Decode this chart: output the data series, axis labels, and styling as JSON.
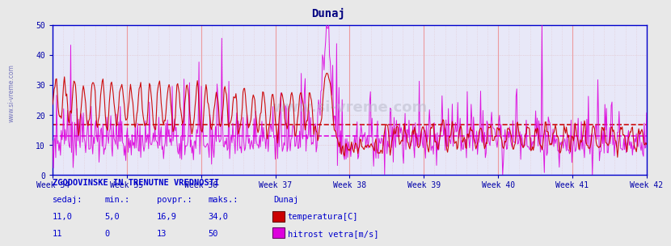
{
  "title": "Dunaj",
  "title_color": "#000080",
  "title_fontsize": 10,
  "bg_color": "#e8e8e8",
  "plot_bg_color": "#e8e8f8",
  "x_labels": [
    "Week 34",
    "Week 35",
    "Week 36",
    "Week 37",
    "Week 38",
    "Week 39",
    "Week 40",
    "Week 41",
    "Week 42"
  ],
  "ylim": [
    0,
    50
  ],
  "yticks": [
    0,
    10,
    20,
    30,
    40,
    50
  ],
  "temp_color": "#cc0000",
  "wind_color": "#dd00dd",
  "avg_temp_line": 16.9,
  "avg_wind_line": 13.0,
  "avg_temp_color": "#cc0000",
  "avg_wind_color": "#dd00dd",
  "grid_color_v": "#ee8888",
  "grid_color_h": "#ddaaaa",
  "axis_color": "#0000cc",
  "tick_color": "#0000aa",
  "label_color": "#0000cc",
  "legend_title": "Dunaj",
  "legend_items": [
    "temperatura[C]",
    "hitrost vetra[m/s]"
  ],
  "stats_title": "ZGODOVINSKE IN TRENUTNE VREDNOSTI",
  "stats_headers": [
    "sedaj:",
    "min.:",
    "povpr.:",
    "maks.:"
  ],
  "stats_temp": [
    "11,0",
    "5,0",
    "16,9",
    "34,0"
  ],
  "stats_wind": [
    "11",
    "0",
    "13",
    "50"
  ],
  "n_points": 756,
  "weeks": 9,
  "points_per_week": 84
}
